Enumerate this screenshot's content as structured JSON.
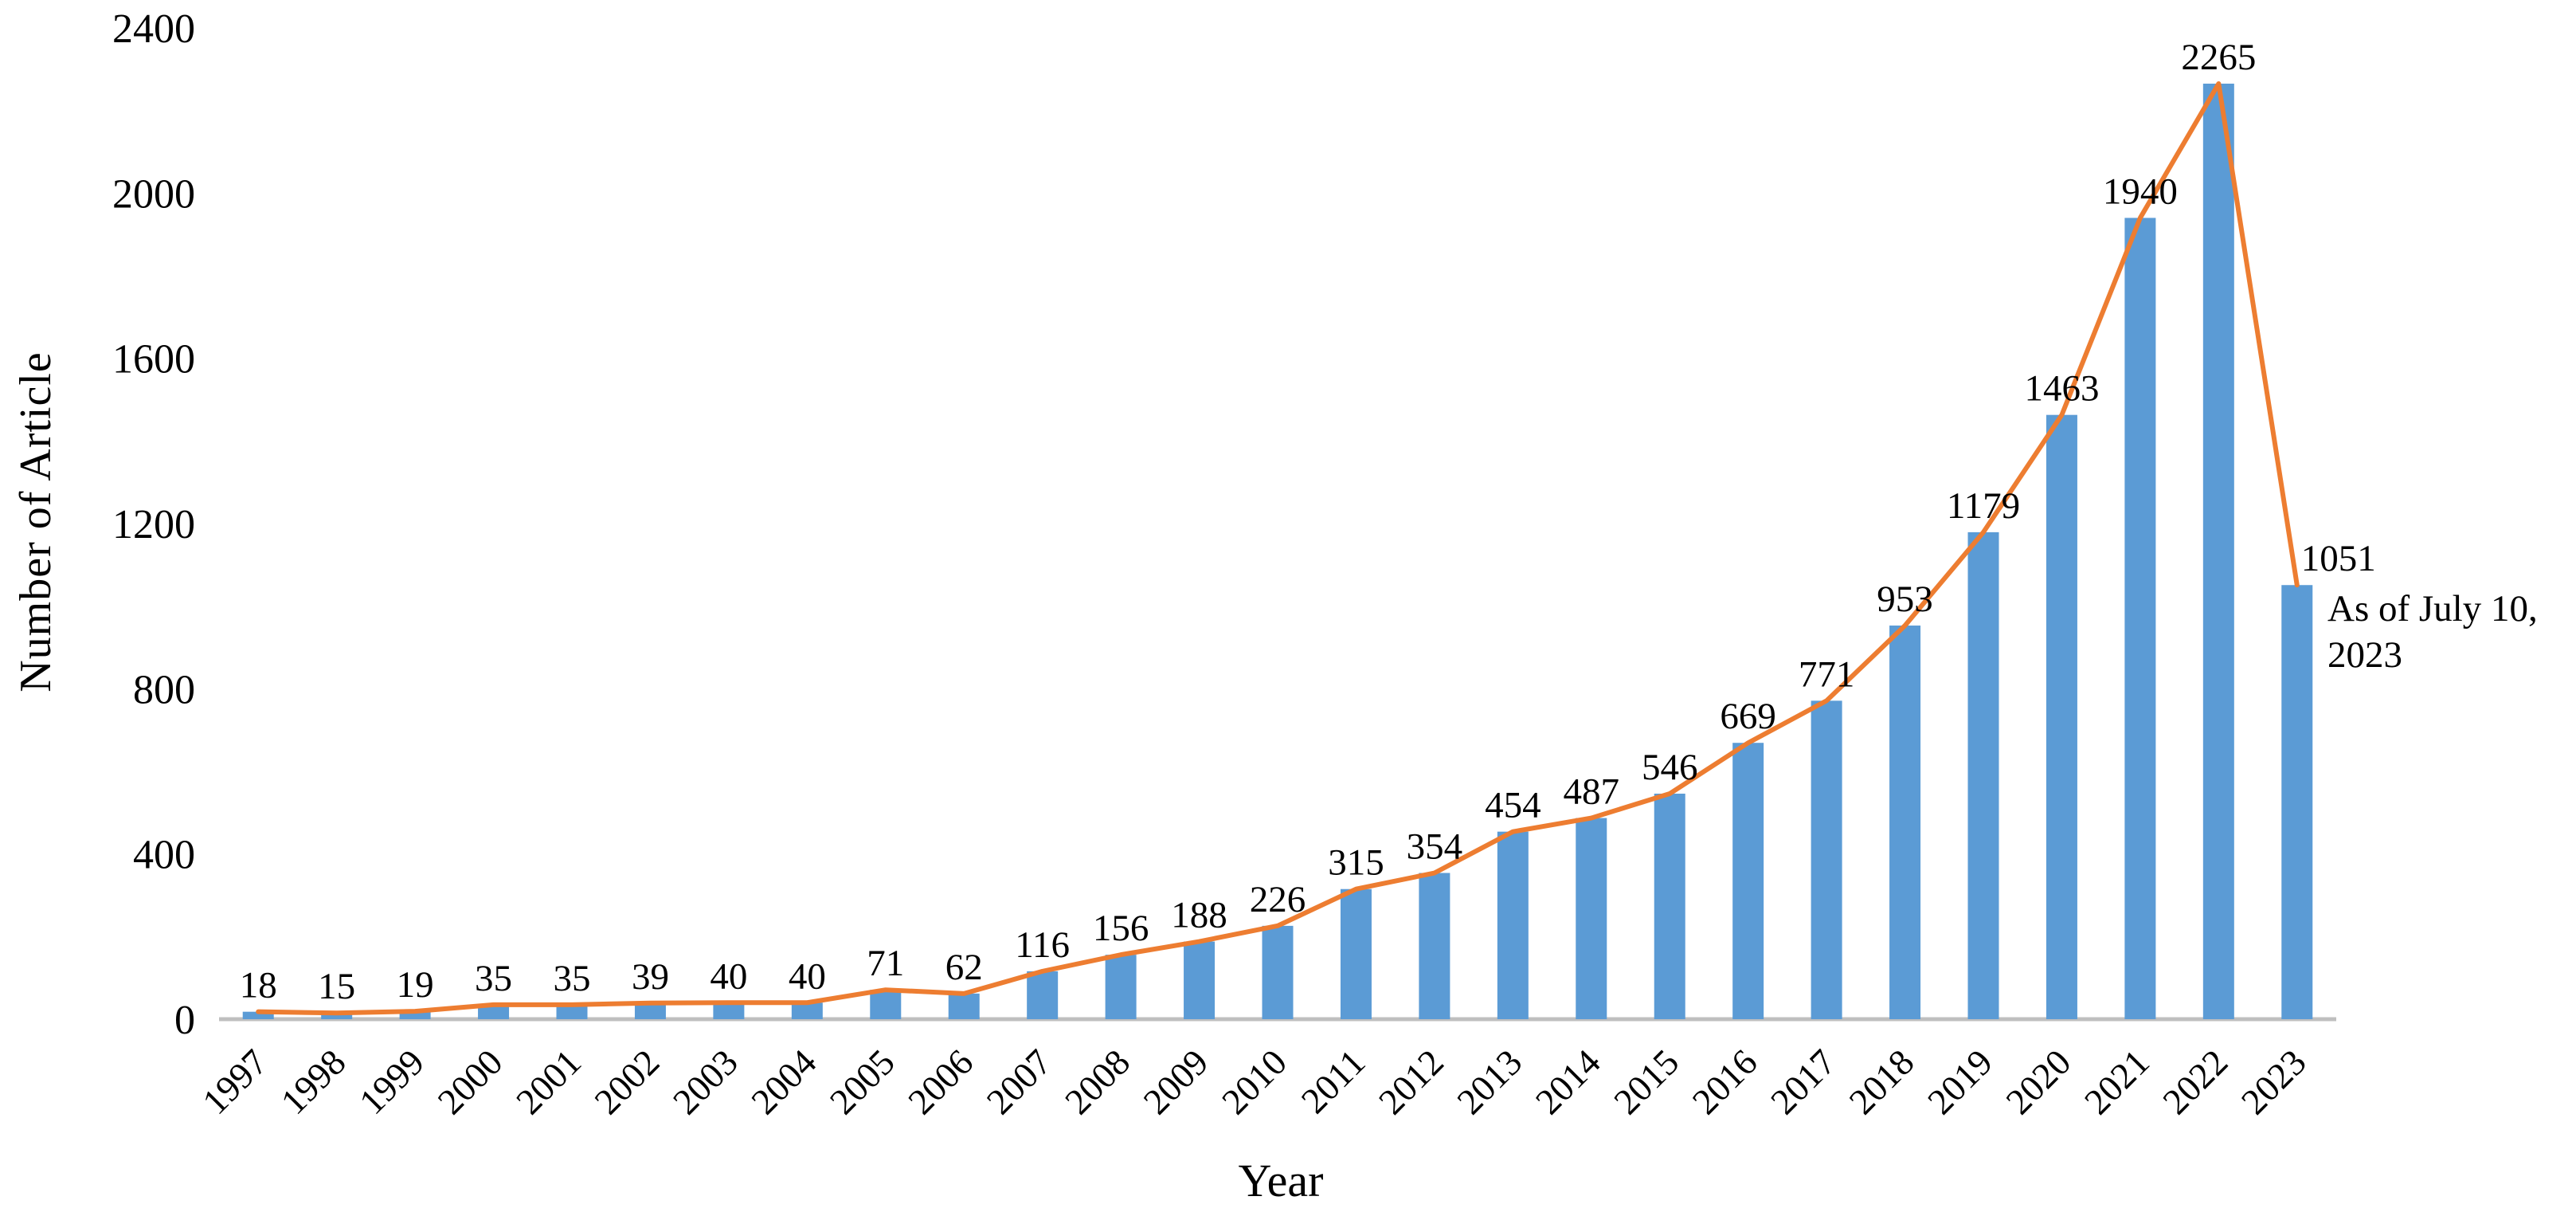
{
  "chart_data": {
    "type": "bar",
    "subtype": "bar-with-line-overlay",
    "title": "",
    "xlabel": "Year",
    "ylabel": "Number of Article",
    "categories": [
      "1997",
      "1998",
      "1999",
      "2000",
      "2001",
      "2002",
      "2003",
      "2004",
      "2005",
      "2006",
      "2007",
      "2008",
      "2009",
      "2010",
      "2011",
      "2012",
      "2013",
      "2014",
      "2015",
      "2016",
      "2017",
      "2018",
      "2019",
      "2020",
      "2021",
      "2022",
      "2023"
    ],
    "series": [
      {
        "name": "Number of Article (bars)",
        "type": "bar",
        "color": "#5B9BD5",
        "values": [
          18,
          15,
          19,
          35,
          35,
          39,
          40,
          40,
          71,
          62,
          116,
          156,
          188,
          226,
          315,
          354,
          454,
          487,
          546,
          669,
          771,
          953,
          1179,
          1463,
          1940,
          2265,
          1051
        ]
      },
      {
        "name": "Number of Article (trend line)",
        "type": "line",
        "color": "#ED7D31",
        "values": [
          18,
          15,
          19,
          35,
          35,
          39,
          40,
          40,
          71,
          62,
          116,
          156,
          188,
          226,
          315,
          354,
          454,
          487,
          546,
          669,
          771,
          953,
          1179,
          1463,
          1940,
          2265,
          1051
        ]
      }
    ],
    "data_labels": [
      "18",
      "15",
      "19",
      "35",
      "35",
      "39",
      "40",
      "40",
      "71",
      "62",
      "116",
      "156",
      "188",
      "226",
      "315",
      "354",
      "454",
      "487",
      "546",
      "669",
      "771",
      "953",
      "1179",
      "1463",
      "1940",
      "2265",
      "1051"
    ],
    "yticks": [
      "0",
      "400",
      "800",
      "1200",
      "1600",
      "2000",
      "2400"
    ],
    "ylim": [
      0,
      2400
    ],
    "ytick_step": 400,
    "grid": false,
    "legend": "none",
    "background": "#ffffff",
    "axis_line_color": "#BFBFBF",
    "text_color": "#000000",
    "annotation": {
      "line1": "As of July 10,",
      "line2": "2023"
    }
  }
}
